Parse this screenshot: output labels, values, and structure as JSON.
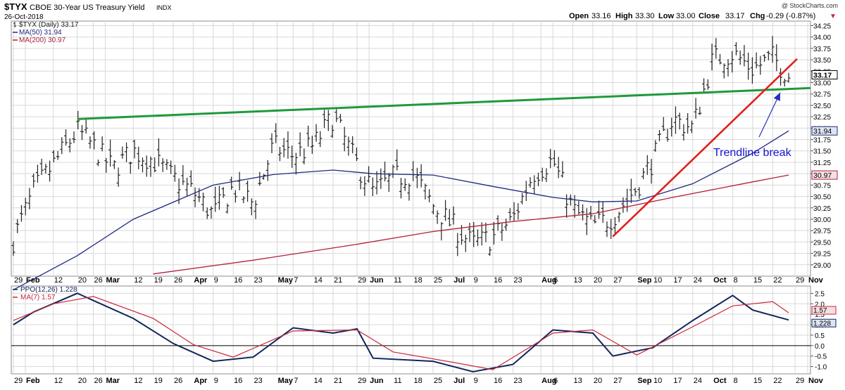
{
  "header": {
    "symbol": "$TYX",
    "name": "CBOE 30-Year US Treasury Yield",
    "exchange": "INDX",
    "date": "26-Oct-2018",
    "watermark": "@ StockCharts.com",
    "open_label": "Open",
    "open": "33.16",
    "high_label": "High",
    "high": "33.30",
    "low_label": "Low",
    "low": "33.00",
    "close_label": "Close",
    "close": "33.17",
    "chg_label": "Chg",
    "chg": "-0.29 (-0.87%)",
    "chg_arrow": "▼"
  },
  "legend_main": [
    {
      "text": "$TYX (Daily) 33.17",
      "color": "#222222",
      "swatch": "bar"
    },
    {
      "text": "MA(50) 31.94",
      "color": "#1f2a80",
      "swatch": "line"
    },
    {
      "text": "MA(200) 30.97",
      "color": "#b0203a",
      "swatch": "line"
    }
  ],
  "legend_ppo": [
    {
      "text": "PPO(12,26) 1.228",
      "color": "#10265a"
    },
    {
      "text": "MA(7) 1.57",
      "color": "#c8283e"
    }
  ],
  "price_badges": [
    {
      "text": "33.17",
      "value": 33.17,
      "fill": "#ffffff",
      "border": "#000000",
      "color": "#000000",
      "bold": true
    },
    {
      "text": "31.94",
      "value": 31.94,
      "fill": "#dfe4f4",
      "border": "#1f2a80",
      "color": "#000000",
      "bold": false
    },
    {
      "text": "30.97",
      "value": 30.97,
      "fill": "#f5dfe3",
      "border": "#b0203a",
      "color": "#000000",
      "bold": false
    }
  ],
  "ppo_badges": [
    {
      "text": "1.57",
      "value": 1.57,
      "fill": "#f5dfe3",
      "border": "#c8283e"
    },
    {
      "text": "1.228",
      "value": 1.228,
      "fill": "#dfe4f4",
      "border": "#10265a"
    }
  ],
  "annotation": {
    "text": "Trendline break",
    "color": "#1414cc"
  },
  "colors": {
    "bars": "#222222",
    "ma50": "#1f2a80",
    "ma200": "#b0203a",
    "ppo": "#10265a",
    "ppo_ma": "#c8283e",
    "green_trendline": "#1e9a3a",
    "red_trendline": "#e0201e",
    "arrow": "#2233bb",
    "grid": "#d8d8d8",
    "frame": "#8c8c8c"
  },
  "chart_data": {
    "type": "line",
    "title": "$TYX CBOE 30-Year US Treasury Yield INDX",
    "subtitle": "26-Oct-2018",
    "x_labels": [
      "29",
      "Feb",
      "12",
      "20",
      "26",
      "Mar",
      "12",
      "19",
      "26",
      "Apr",
      "9",
      "16",
      "23",
      "May",
      "7",
      "14",
      "21",
      "29",
      "Jun",
      "11",
      "18",
      "25",
      "Jul",
      "9",
      "16",
      "23",
      "Aug",
      "6",
      "13",
      "20",
      "27",
      "Sep",
      "10",
      "17",
      "24",
      "Oct",
      "8",
      "15",
      "22",
      "29",
      "Nov"
    ],
    "x_bold": [
      "Feb",
      "Mar",
      "Apr",
      "May",
      "Jun",
      "Jul",
      "Aug",
      "Sep",
      "Oct",
      "Nov"
    ],
    "y_ticks": [
      "29.00",
      "29.25",
      "29.50",
      "29.75",
      "30.00",
      "30.25",
      "30.50",
      "30.75",
      "31.00",
      "31.25",
      "31.50",
      "31.75",
      "32.00",
      "32.25",
      "32.50",
      "32.75",
      "33.00",
      "33.25",
      "33.50",
      "33.75",
      "34.00",
      "34.25"
    ],
    "ylim": [
      28.75,
      34.35
    ],
    "ppo_ticks": [
      "-1.0",
      "-0.5",
      "0.0",
      "0.5",
      "1.0",
      "1.5",
      "2.0",
      "2.5"
    ],
    "ppo_ylim": [
      -1.35,
      2.85
    ],
    "grid": true,
    "legend_position": "top-left",
    "price_series": {
      "name": "$TYX (Daily)",
      "x_date": [
        "Jan-29",
        "Feb-05",
        "Feb-12",
        "Feb-20",
        "Feb-26",
        "Mar-05",
        "Mar-12",
        "Mar-19",
        "Mar-26",
        "Apr-02",
        "Apr-09",
        "Apr-16",
        "Apr-23",
        "Apr-30",
        "May-07",
        "May-14",
        "May-21",
        "May-29",
        "Jun-04",
        "Jun-11",
        "Jun-18",
        "Jun-25",
        "Jul-02",
        "Jul-09",
        "Jul-16",
        "Jul-23",
        "Jul-30",
        "Aug-06",
        "Aug-13",
        "Aug-20",
        "Aug-27",
        "Sep-04",
        "Sep-10",
        "Sep-17",
        "Sep-24",
        "Oct-01",
        "Oct-08",
        "Oct-15",
        "Oct-22",
        "Oct-26"
      ],
      "values": [
        29.55,
        30.6,
        31.2,
        31.95,
        31.6,
        31.1,
        31.5,
        31.3,
        30.9,
        30.6,
        30.1,
        30.7,
        30.35,
        31.6,
        31.4,
        31.6,
        32.25,
        31.2,
        30.6,
        30.9,
        31.0,
        30.3,
        29.85,
        29.45,
        29.6,
        30.0,
        31.0,
        31.3,
        30.2,
        29.85,
        30.05,
        30.7,
        31.3,
        32.2,
        32.0,
        33.5,
        33.65,
        33.3,
        33.55,
        33.17
      ]
    },
    "series": [
      {
        "name": "MA(50)",
        "last": 31.94,
        "x_date": [
          "Jan-29",
          "Feb-20",
          "Mar-12",
          "Apr-09",
          "Apr-30",
          "May-21",
          "Jun-04",
          "Jun-25",
          "Jul-16",
          "Aug-06",
          "Aug-20",
          "Sep-04",
          "Sep-24",
          "Oct-15",
          "Oct-26"
        ],
        "values": [
          28.45,
          29.2,
          30.0,
          30.75,
          30.98,
          31.08,
          31.0,
          30.97,
          30.72,
          30.48,
          30.38,
          30.4,
          30.78,
          31.45,
          31.94
        ]
      },
      {
        "name": "MA(200)",
        "last": 30.97,
        "x_date": [
          "Mar-19",
          "Apr-23",
          "May-29",
          "Jun-25",
          "Jul-23",
          "Aug-20",
          "Sep-17",
          "Oct-15",
          "Oct-26"
        ],
        "values": [
          28.8,
          29.1,
          29.45,
          29.73,
          29.95,
          30.12,
          30.48,
          30.82,
          30.97
        ]
      }
    ],
    "ppo": {
      "name": "PPO(12,26)",
      "last": 1.228,
      "x_date": [
        "Jan-29",
        "Feb-05",
        "Feb-20",
        "Mar-12",
        "Mar-26",
        "Apr-09",
        "Apr-23",
        "May-07",
        "May-21",
        "May-29",
        "Jun-04",
        "Jun-25",
        "Jul-09",
        "Jul-23",
        "Aug-06",
        "Aug-20",
        "Aug-27",
        "Sep-10",
        "Sep-24",
        "Oct-08",
        "Oct-15",
        "Oct-26"
      ],
      "values": [
        1.0,
        1.6,
        2.5,
        1.3,
        0.1,
        -0.75,
        -0.55,
        0.85,
        0.6,
        0.8,
        -0.6,
        -0.75,
        -1.25,
        -0.9,
        0.75,
        0.6,
        -0.5,
        -0.1,
        1.2,
        2.4,
        1.7,
        1.228
      ]
    },
    "ppo_signal": {
      "name": "MA(7)",
      "last": 1.57,
      "x_date": [
        "Jan-29",
        "Feb-12",
        "Feb-26",
        "Mar-19",
        "Apr-02",
        "Apr-16",
        "May-07",
        "May-29",
        "Jun-11",
        "Jul-02",
        "Jul-16",
        "Aug-06",
        "Aug-20",
        "Sep-04",
        "Sep-24",
        "Oct-08",
        "Oct-22",
        "Oct-26"
      ],
      "values": [
        1.2,
        2.0,
        2.35,
        1.3,
        0.05,
        -0.55,
        0.7,
        0.75,
        -0.3,
        -0.8,
        -1.15,
        0.6,
        0.75,
        -0.45,
        0.9,
        1.9,
        2.1,
        1.57
      ]
    }
  }
}
